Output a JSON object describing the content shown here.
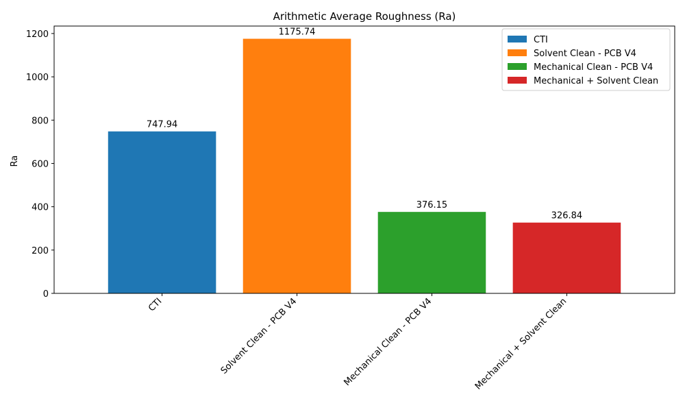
{
  "chart_data": {
    "type": "bar",
    "title": "Arithmetic Average Roughness (Ra)",
    "xlabel": "",
    "ylabel": "Ra",
    "ylim": [
      0,
      1234.5
    ],
    "yticks": [
      0,
      200,
      400,
      600,
      800,
      1000,
      1200
    ],
    "grid": false,
    "legend_position": "top-right",
    "categories": [
      "CTI",
      "Solvent Clean - PCB V4",
      "Mechanical Clean - PCB V4",
      "Mechanical + Solvent Clean"
    ],
    "values": [
      747.94,
      1175.74,
      376.15,
      326.84
    ],
    "value_labels": [
      "747.94",
      "1175.74",
      "376.15",
      "326.84"
    ],
    "colors": [
      "#1f77b4",
      "#ff7f0e",
      "#2ca02c",
      "#d62728"
    ],
    "legend": [
      "CTI",
      "Solvent Clean - PCB V4",
      "Mechanical Clean - PCB V4",
      "Mechanical + Solvent Clean"
    ]
  }
}
